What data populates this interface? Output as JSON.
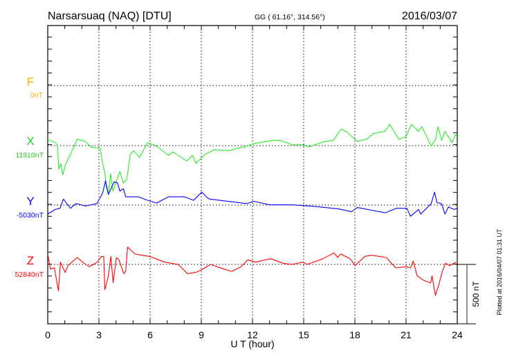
{
  "header": {
    "station": "Narsarsuaq (NAQ)  [DTU]",
    "coords": "GG ( 61.16°, 314.56°)",
    "date": "2016/03/07"
  },
  "footer_note": "Plotted at 2016/04/07 01:31 UT",
  "scale_bar_label": "500 nT",
  "chart_data": {
    "type": "line",
    "title": "Narsarsuaq (NAQ)  [DTU]",
    "xlabel": "U T (hour)",
    "ylabel": "",
    "xlim": [
      0,
      24
    ],
    "x_ticks": [
      "0",
      "3",
      "6",
      "9",
      "12",
      "15",
      "18",
      "21",
      "24"
    ],
    "grid": true,
    "scale_nT_per_division": 500,
    "components": {
      "F": {
        "label": "F",
        "baseline_label": "0nT",
        "color": "#ffaa00"
      },
      "X": {
        "label": "X",
        "baseline_label": "11910nT",
        "color": "#22ee22"
      },
      "Y": {
        "label": "Y",
        "baseline_label": "-5030nT",
        "color": "#0000ff"
      },
      "Z": {
        "label": "Z",
        "baseline_label": "52840nT",
        "color": "#ff0000"
      }
    },
    "series": [
      {
        "name": "X",
        "baseline_nT": 11910,
        "unit": "nT offset from baseline",
        "points": [
          [
            0,
            54
          ],
          [
            0.45,
            25
          ],
          [
            0.57,
            0
          ],
          [
            0.65,
            -197
          ],
          [
            0.77,
            -150
          ],
          [
            0.88,
            -243
          ],
          [
            1.05,
            -156
          ],
          [
            1.26,
            -92
          ],
          [
            1.53,
            -12
          ],
          [
            1.73,
            54
          ],
          [
            2.19,
            35
          ],
          [
            2.54,
            -12
          ],
          [
            3.08,
            -23
          ],
          [
            3.21,
            -148
          ],
          [
            3.35,
            -225
          ],
          [
            3.42,
            -341
          ],
          [
            3.55,
            -408
          ],
          [
            3.69,
            -235
          ],
          [
            3.82,
            -380
          ],
          [
            4.23,
            -216
          ],
          [
            4.43,
            -312
          ],
          [
            4.63,
            -283
          ],
          [
            4.84,
            -71
          ],
          [
            5.04,
            -42
          ],
          [
            5.38,
            -100
          ],
          [
            5.85,
            25
          ],
          [
            6.39,
            -4
          ],
          [
            7.07,
            -81
          ],
          [
            7.34,
            -52
          ],
          [
            8.15,
            -129
          ],
          [
            8.48,
            -81
          ],
          [
            8.69,
            -148
          ],
          [
            9.23,
            -71
          ],
          [
            9.77,
            -33
          ],
          [
            10.58,
            -42
          ],
          [
            11.66,
            -4
          ],
          [
            12.07,
            16
          ],
          [
            13.15,
            44
          ],
          [
            13.62,
            44
          ],
          [
            14.36,
            6
          ],
          [
            14.9,
            10
          ],
          [
            15.31,
            -10
          ],
          [
            16.25,
            35
          ],
          [
            16.73,
            44
          ],
          [
            17.2,
            140
          ],
          [
            17.54,
            112
          ],
          [
            18.15,
            35
          ],
          [
            18.69,
            54
          ],
          [
            19.09,
            102
          ],
          [
            19.77,
            121
          ],
          [
            20.04,
            179
          ],
          [
            20.58,
            54
          ],
          [
            20.98,
            73
          ],
          [
            21.32,
            179
          ],
          [
            21.73,
            121
          ],
          [
            21.93,
            160
          ],
          [
            22.47,
            -4
          ],
          [
            22.74,
            54
          ],
          [
            22.87,
            160
          ],
          [
            23.08,
            44
          ],
          [
            23.28,
            121
          ],
          [
            23.69,
            25
          ],
          [
            23.89,
            92
          ],
          [
            24,
            77
          ]
        ]
      },
      {
        "name": "Y",
        "baseline_nT": -5030,
        "unit": "nT offset from baseline",
        "points": [
          [
            0,
            -75
          ],
          [
            0.45,
            -37
          ],
          [
            0.72,
            -27
          ],
          [
            0.92,
            50
          ],
          [
            1.33,
            -27
          ],
          [
            1.66,
            12
          ],
          [
            2.2,
            -8
          ],
          [
            2.88,
            12
          ],
          [
            3.21,
            98
          ],
          [
            3.39,
            204
          ],
          [
            3.55,
            88
          ],
          [
            3.89,
            195
          ],
          [
            4.09,
            185
          ],
          [
            4.23,
            117
          ],
          [
            4.43,
            137
          ],
          [
            4.57,
            69
          ],
          [
            5.31,
            69
          ],
          [
            5.85,
            40
          ],
          [
            6.39,
            17
          ],
          [
            7.07,
            69
          ],
          [
            8.01,
            69
          ],
          [
            8.55,
            40
          ],
          [
            9.03,
            108
          ],
          [
            9.36,
            60
          ],
          [
            9.5,
            50
          ],
          [
            10.31,
            36
          ],
          [
            11.66,
            12
          ],
          [
            12.07,
            31
          ],
          [
            13.01,
            2
          ],
          [
            14.36,
            2
          ],
          [
            15.72,
            -13
          ],
          [
            17.07,
            -33
          ],
          [
            17.8,
            -56
          ],
          [
            18.15,
            -21
          ],
          [
            19.09,
            -46
          ],
          [
            19.77,
            -65
          ],
          [
            20.44,
            -27
          ],
          [
            21.05,
            -27
          ],
          [
            21.26,
            -94
          ],
          [
            21.73,
            -37
          ],
          [
            21.86,
            -75
          ],
          [
            22.2,
            -27
          ],
          [
            22.47,
            12
          ],
          [
            22.67,
            108
          ],
          [
            22.81,
            21
          ],
          [
            23.08,
            12
          ],
          [
            23.28,
            -75
          ],
          [
            23.48,
            -17
          ],
          [
            23.82,
            -37
          ],
          [
            24,
            -27
          ]
        ]
      },
      {
        "name": "Z",
        "baseline_nT": 52840,
        "unit": "nT offset from baseline",
        "points": [
          [
            0,
            87
          ],
          [
            0.16,
            -39
          ],
          [
            0.39,
            -29
          ],
          [
            0.63,
            -222
          ],
          [
            0.74,
            19
          ],
          [
            1.02,
            -67
          ],
          [
            1.18,
            -10
          ],
          [
            1.42,
            19
          ],
          [
            1.73,
            58
          ],
          [
            2.13,
            10
          ],
          [
            2.44,
            -19
          ],
          [
            2.91,
            19
          ],
          [
            3.15,
            67
          ],
          [
            3.28,
            67
          ],
          [
            3.35,
            -212
          ],
          [
            3.54,
            -106
          ],
          [
            3.7,
            67
          ],
          [
            3.83,
            -154
          ],
          [
            4.02,
            58
          ],
          [
            4.17,
            39
          ],
          [
            4.46,
            -77
          ],
          [
            4.57,
            -58
          ],
          [
            4.68,
            145
          ],
          [
            5.12,
            87
          ],
          [
            5.51,
            77
          ],
          [
            5.98,
            67
          ],
          [
            6.85,
            19
          ],
          [
            7.64,
            0
          ],
          [
            8.19,
            -77
          ],
          [
            8.66,
            -67
          ],
          [
            8.98,
            -48
          ],
          [
            9.53,
            0
          ],
          [
            10.31,
            -39
          ],
          [
            10.79,
            -58
          ],
          [
            11.34,
            -19
          ],
          [
            11.73,
            39
          ],
          [
            12.2,
            19
          ],
          [
            13.07,
            48
          ],
          [
            13.78,
            10
          ],
          [
            14.33,
            0
          ],
          [
            14.96,
            19
          ],
          [
            15.2,
            0
          ],
          [
            16.14,
            48
          ],
          [
            16.77,
            96
          ],
          [
            17.0,
            58
          ],
          [
            17.17,
            87
          ],
          [
            17.72,
            48
          ],
          [
            18.03,
            -10
          ],
          [
            18.58,
            67
          ],
          [
            18.98,
            77
          ],
          [
            19.84,
            58
          ],
          [
            20.39,
            -29
          ],
          [
            21.02,
            -19
          ],
          [
            21.26,
            -29
          ],
          [
            21.42,
            29
          ],
          [
            21.65,
            -96
          ],
          [
            22.05,
            -135
          ],
          [
            22.44,
            -154
          ],
          [
            22.52,
            -96
          ],
          [
            22.72,
            -260
          ],
          [
            22.91,
            -173
          ],
          [
            23.15,
            -48
          ],
          [
            23.31,
            10
          ],
          [
            23.54,
            -10
          ],
          [
            23.94,
            19
          ]
        ]
      }
    ]
  }
}
